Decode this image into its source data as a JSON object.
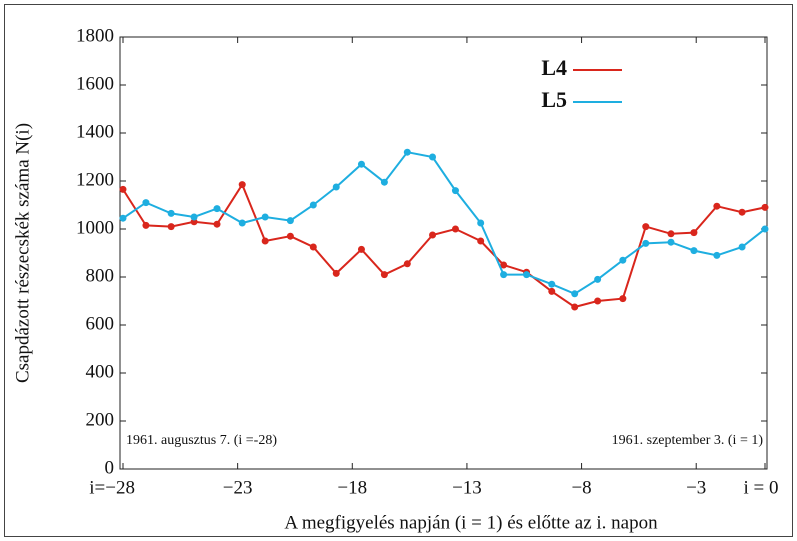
{
  "chart_data": {
    "type": "line",
    "x": [
      -28,
      -27,
      -25.9,
      -24.9,
      -23.9,
      -22.8,
      -21.8,
      -20.7,
      -19.7,
      -18.7,
      -17.6,
      -16.6,
      -15.6,
      -14.5,
      -13.5,
      -12.4,
      -11.4,
      -10.4,
      -9.3,
      -8.3,
      -7.3,
      -6.2,
      -5.2,
      -4.1,
      -3.1,
      -2.1,
      -1,
      0
    ],
    "series": [
      {
        "name": "L4",
        "color": "#d9261c",
        "values": [
          1165,
          1015,
          1010,
          1030,
          1020,
          1185,
          950,
          970,
          925,
          815,
          915,
          810,
          855,
          975,
          1000,
          950,
          850,
          820,
          740,
          675,
          700,
          710,
          1010,
          980,
          985,
          1095,
          1070,
          1090
        ]
      },
      {
        "name": "L5",
        "color": "#1eaee0",
        "values": [
          1045,
          1110,
          1065,
          1050,
          1085,
          1025,
          1050,
          1035,
          1100,
          1175,
          1270,
          1195,
          1320,
          1300,
          1160,
          1025,
          810,
          810,
          770,
          730,
          790,
          870,
          940,
          945,
          910,
          890,
          925,
          1000
        ]
      }
    ],
    "xlim": [
      -28,
      0
    ],
    "xticks": [
      {
        "value": -28,
        "label": "i=−28"
      },
      {
        "value": -23,
        "label": "−23"
      },
      {
        "value": -18,
        "label": "−18"
      },
      {
        "value": -13,
        "label": "−13"
      },
      {
        "value": -8,
        "label": "−8"
      },
      {
        "value": -3,
        "label": "−3"
      },
      {
        "value": 0,
        "label": "i = 0"
      }
    ],
    "ylim": [
      0,
      1800
    ],
    "yticks": [
      0,
      200,
      400,
      600,
      800,
      1000,
      1200,
      1400,
      1600,
      1800
    ],
    "xlabel": "A megfigyelés napján (i = 1) és előtte az i. napon",
    "ylabel": "Csapdázott részecskék száma N(i)",
    "annotations": [
      "1961. augusztus 7. (i =-28)",
      "1961. szeptember 3. (i = 1)"
    ],
    "legend": "upper right"
  }
}
